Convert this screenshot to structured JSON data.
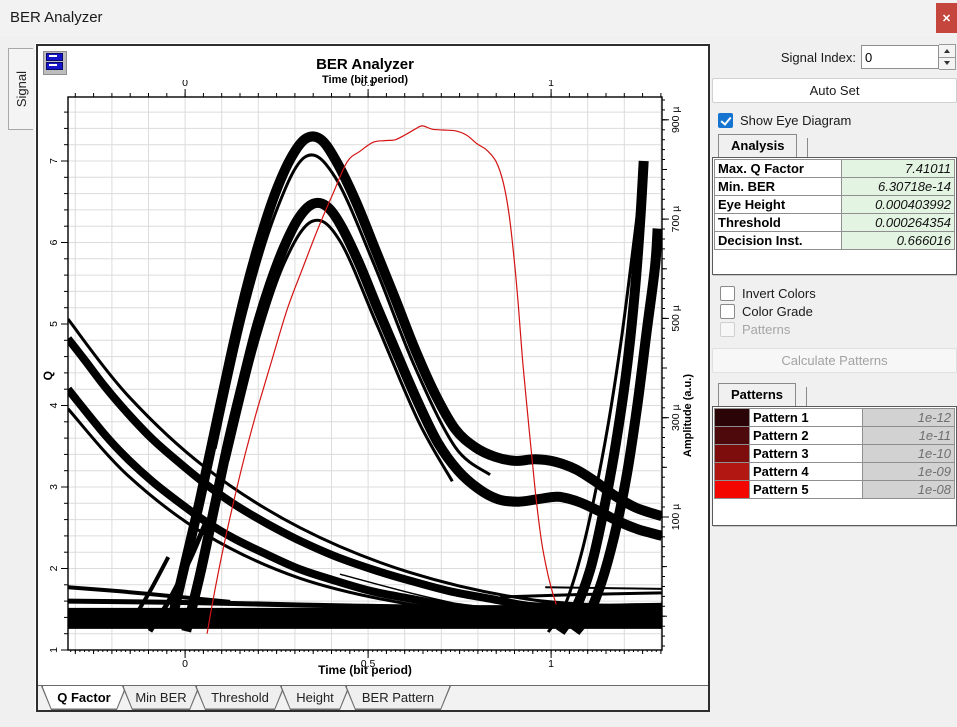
{
  "window": {
    "title": "BER Analyzer",
    "close_icon": "✕",
    "close_color": "#c4463d"
  },
  "left_tab": {
    "label": "Signal"
  },
  "chart": {
    "title": "BER Analyzer",
    "top_axis_title": "Time (bit period)",
    "bottom_axis_title": "Time (bit period)",
    "left_axis_title": "Q",
    "right_axis_title": "Amplitude (a.u.)"
  },
  "bottom_tabs": [
    {
      "label": "Q Factor",
      "active": true
    },
    {
      "label": "Min BER",
      "active": false
    },
    {
      "label": "Threshold",
      "active": false
    },
    {
      "label": "Height",
      "active": false
    },
    {
      "label": "BER Pattern",
      "active": false
    }
  ],
  "panel": {
    "signal_index_label": "Signal Index:",
    "signal_index_value": "0",
    "auto_set_label": "Auto Set",
    "show_eye_label": "Show Eye Diagram",
    "analysis_tab_label": "Analysis",
    "invert_colors_label": "Invert Colors",
    "color_grade_label": "Color Grade",
    "patterns_checkbox_label": "Patterns",
    "calculate_patterns_label": "Calculate Patterns",
    "patterns_tab_label": "Patterns",
    "analysis_value_bg": "#e4f4e2"
  },
  "analysis": {
    "rows": [
      {
        "label": "Max. Q Factor",
        "value": "7.41011"
      },
      {
        "label": "Min. BER",
        "value": "6.30718e-14"
      },
      {
        "label": "Eye Height",
        "value": "0.000403992"
      },
      {
        "label": "Threshold",
        "value": "0.000264354"
      },
      {
        "label": "Decision Inst.",
        "value": "0.666016"
      }
    ]
  },
  "patterns": {
    "rows": [
      {
        "label": "Pattern 1",
        "value": "1e-12",
        "color": "#2a0406"
      },
      {
        "label": "Pattern 2",
        "value": "1e-11",
        "color": "#4d090b"
      },
      {
        "label": "Pattern 3",
        "value": "1e-10",
        "color": "#7c0d0c"
      },
      {
        "label": "Pattern 4",
        "value": "1e-09",
        "color": "#b31712"
      },
      {
        "label": "Pattern 5",
        "value": "1e-08",
        "color": "#f40600"
      }
    ]
  },
  "chart_data": {
    "type": "line",
    "title": "BER Analyzer",
    "description": "Eye diagram (black bands, right amplitude axis) overlaid with Q-factor vs decision instant (red, left Q axis). Max Q 7.41011 at decision instant 0.666016.",
    "x_axis": {
      "label": "Time (bit period)",
      "min": -0.32,
      "max": 1.303,
      "minor_step": 0.05,
      "micro_step": 0.0125,
      "majors": [
        {
          "v": 0,
          "l": "0"
        },
        {
          "v": 0.5,
          "l": "0.5"
        },
        {
          "v": 1,
          "l": "1"
        }
      ]
    },
    "y_left": {
      "label": "Q",
      "min": 1.0,
      "max": 7.785,
      "minor_step": 0.2,
      "majors": [
        {
          "v": 1,
          "l": "1"
        },
        {
          "v": 2,
          "l": "2"
        },
        {
          "v": 3,
          "l": "3"
        },
        {
          "v": 4,
          "l": "4"
        },
        {
          "v": 5,
          "l": "5"
        },
        {
          "v": 6,
          "l": "6"
        },
        {
          "v": 7,
          "l": "7"
        }
      ]
    },
    "y_right": {
      "label": "Amplitude (a.u.)",
      "min": -168,
      "max": 946,
      "minor_step": 20,
      "medium_step": 100,
      "majors": [
        {
          "v": 100,
          "l": "100 µ"
        },
        {
          "v": 300,
          "l": "300 µ"
        },
        {
          "v": 500,
          "l": "500 µ"
        },
        {
          "v": 700,
          "l": "700 µ"
        },
        {
          "v": 900,
          "l": "900 µ"
        }
      ]
    },
    "grid": {
      "x_step": 0.1,
      "y_step": 0.2,
      "color": "#dcdcdc"
    },
    "q_factor_curve": {
      "name": "Q Factor",
      "color": "#d41414",
      "width": 1.2,
      "points": [
        [
          0.06,
          1.2
        ],
        [
          0.077,
          1.63
        ],
        [
          0.101,
          2.18
        ],
        [
          0.131,
          2.79
        ],
        [
          0.164,
          3.4
        ],
        [
          0.199,
          3.98
        ],
        [
          0.238,
          4.57
        ],
        [
          0.279,
          5.18
        ],
        [
          0.32,
          5.67
        ],
        [
          0.363,
          6.17
        ],
        [
          0.404,
          6.6
        ],
        [
          0.443,
          6.99
        ],
        [
          0.478,
          7.12
        ],
        [
          0.514,
          7.23
        ],
        [
          0.546,
          7.25
        ],
        [
          0.574,
          7.26
        ],
        [
          0.601,
          7.32
        ],
        [
          0.628,
          7.39
        ],
        [
          0.648,
          7.43
        ],
        [
          0.675,
          7.39
        ],
        [
          0.705,
          7.38
        ],
        [
          0.738,
          7.37
        ],
        [
          0.768,
          7.32
        ],
        [
          0.798,
          7.21
        ],
        [
          0.825,
          7.13
        ],
        [
          0.85,
          6.99
        ],
        [
          0.869,
          6.74
        ],
        [
          0.885,
          6.35
        ],
        [
          0.899,
          5.8
        ],
        [
          0.91,
          5.25
        ],
        [
          0.923,
          4.51
        ],
        [
          0.94,
          3.71
        ],
        [
          0.956,
          2.98
        ],
        [
          0.973,
          2.36
        ],
        [
          0.989,
          1.97
        ],
        [
          1.003,
          1.72
        ],
        [
          1.014,
          1.56
        ]
      ]
    },
    "eye_bands": [
      {
        "w": 10,
        "pts": [
          [
            -0.041,
            1.28
          ],
          [
            0.0,
            2.06
          ],
          [
            0.041,
            2.85
          ],
          [
            0.082,
            3.71
          ],
          [
            0.123,
            4.57
          ],
          [
            0.164,
            5.37
          ],
          [
            0.205,
            6.04
          ],
          [
            0.246,
            6.6
          ],
          [
            0.287,
            7.02
          ],
          [
            0.328,
            7.27
          ],
          [
            0.369,
            7.27
          ],
          [
            0.41,
            7.02
          ],
          [
            0.464,
            6.53
          ],
          [
            0.519,
            5.92
          ],
          [
            0.574,
            5.31
          ],
          [
            0.628,
            4.69
          ],
          [
            0.683,
            4.14
          ],
          [
            0.738,
            3.71
          ],
          [
            0.792,
            3.49
          ],
          [
            0.847,
            3.37
          ],
          [
            0.902,
            3.32
          ],
          [
            0.956,
            3.34
          ],
          [
            1.011,
            3.31
          ],
          [
            1.066,
            3.22
          ],
          [
            1.12,
            3.07
          ],
          [
            1.175,
            2.89
          ],
          [
            1.23,
            2.75
          ],
          [
            1.303,
            2.64
          ]
        ]
      },
      {
        "w": 3,
        "pts": [
          [
            0.082,
            3.47
          ],
          [
            0.164,
            5.12
          ],
          [
            0.246,
            6.35
          ],
          [
            0.328,
            7.05
          ],
          [
            0.41,
            6.8
          ],
          [
            0.519,
            5.7
          ],
          [
            0.628,
            4.47
          ],
          [
            0.738,
            3.49
          ],
          [
            0.833,
            3.15
          ]
        ]
      },
      {
        "w": 10,
        "pts": [
          [
            0.003,
            1.23
          ],
          [
            0.041,
            1.93
          ],
          [
            0.079,
            2.73
          ],
          [
            0.117,
            3.53
          ],
          [
            0.156,
            4.26
          ],
          [
            0.194,
            4.94
          ],
          [
            0.232,
            5.49
          ],
          [
            0.27,
            5.94
          ],
          [
            0.309,
            6.29
          ],
          [
            0.347,
            6.47
          ],
          [
            0.385,
            6.45
          ],
          [
            0.423,
            6.23
          ],
          [
            0.473,
            5.77
          ],
          [
            0.527,
            5.18
          ],
          [
            0.582,
            4.6
          ],
          [
            0.637,
            4.03
          ],
          [
            0.691,
            3.54
          ],
          [
            0.746,
            3.2
          ],
          [
            0.801,
            2.98
          ],
          [
            0.855,
            2.85
          ],
          [
            0.91,
            2.82
          ],
          [
            0.964,
            2.85
          ],
          [
            1.019,
            2.88
          ],
          [
            1.074,
            2.82
          ],
          [
            1.128,
            2.71
          ],
          [
            1.183,
            2.58
          ],
          [
            1.238,
            2.48
          ],
          [
            1.303,
            2.4
          ]
        ]
      },
      {
        "w": 3,
        "pts": [
          [
            0.117,
            3.32
          ],
          [
            0.194,
            4.72
          ],
          [
            0.27,
            5.74
          ],
          [
            0.347,
            6.26
          ],
          [
            0.423,
            6.02
          ],
          [
            0.527,
            4.96
          ],
          [
            0.637,
            3.81
          ],
          [
            0.73,
            3.07
          ]
        ]
      },
      {
        "w": 10,
        "pts": [
          [
            1.025,
            1.22
          ],
          [
            1.066,
            1.5
          ],
          [
            1.107,
            1.99
          ],
          [
            1.139,
            2.61
          ],
          [
            1.172,
            3.4
          ],
          [
            1.205,
            4.39
          ],
          [
            1.227,
            5.31
          ],
          [
            1.243,
            6.23
          ],
          [
            1.253,
            7.0
          ]
        ]
      },
      {
        "w": 3,
        "pts": [
          [
            0.992,
            1.22
          ],
          [
            1.036,
            1.53
          ],
          [
            1.079,
            2.12
          ],
          [
            1.117,
            2.85
          ],
          [
            1.156,
            3.77
          ],
          [
            1.194,
            4.88
          ],
          [
            1.227,
            6.04
          ],
          [
            1.249,
            6.84
          ]
        ]
      },
      {
        "w": 10,
        "pts": [
          [
            1.066,
            1.22
          ],
          [
            1.104,
            1.45
          ],
          [
            1.139,
            1.85
          ],
          [
            1.172,
            2.39
          ],
          [
            1.205,
            3.1
          ],
          [
            1.235,
            3.98
          ],
          [
            1.262,
            4.94
          ],
          [
            1.284,
            5.7
          ],
          [
            1.291,
            6.17
          ]
        ]
      },
      {
        "w": 8,
        "pts": [
          [
            -0.32,
            4.82
          ],
          [
            -0.273,
            4.55
          ],
          [
            -0.219,
            4.23
          ],
          [
            -0.156,
            3.9
          ],
          [
            -0.09,
            3.59
          ],
          [
            -0.019,
            3.31
          ],
          [
            0.055,
            3.04
          ],
          [
            0.137,
            2.78
          ],
          [
            0.224,
            2.55
          ],
          [
            0.314,
            2.34
          ],
          [
            0.41,
            2.15
          ],
          [
            0.511,
            1.99
          ],
          [
            0.615,
            1.85
          ],
          [
            0.724,
            1.72
          ],
          [
            0.833,
            1.63
          ],
          [
            0.943,
            1.54
          ],
          [
            1.052,
            1.53
          ],
          [
            1.167,
            1.48
          ],
          [
            1.303,
            1.45
          ]
        ]
      },
      {
        "w": 3,
        "pts": [
          [
            -0.32,
            5.06
          ],
          [
            -0.156,
            4.12
          ],
          [
            0.055,
            3.24
          ],
          [
            0.314,
            2.5
          ],
          [
            0.615,
            1.95
          ],
          [
            0.943,
            1.62
          ],
          [
            1.303,
            1.52
          ]
        ]
      },
      {
        "w": 8,
        "pts": [
          [
            -0.32,
            4.2
          ],
          [
            -0.219,
            3.64
          ],
          [
            -0.156,
            3.34
          ],
          [
            -0.09,
            3.07
          ],
          [
            -0.019,
            2.82
          ],
          [
            0.055,
            2.58
          ],
          [
            0.137,
            2.36
          ],
          [
            0.224,
            2.17
          ],
          [
            0.314,
            1.99
          ],
          [
            0.41,
            1.85
          ],
          [
            0.511,
            1.72
          ],
          [
            0.615,
            1.63
          ],
          [
            0.724,
            1.54
          ],
          [
            0.833,
            1.48
          ],
          [
            0.943,
            1.43
          ],
          [
            1.052,
            1.39
          ],
          [
            1.303,
            1.36
          ]
        ]
      },
      {
        "w": 3,
        "pts": [
          [
            -0.32,
            3.96
          ],
          [
            -0.156,
            3.14
          ],
          [
            0.055,
            2.42
          ],
          [
            0.314,
            1.88
          ],
          [
            0.615,
            1.56
          ],
          [
            0.943,
            1.4
          ],
          [
            1.303,
            1.34
          ]
        ]
      },
      {
        "w": 15,
        "pts": [
          [
            -0.32,
            1.38
          ],
          [
            0.5,
            1.38
          ],
          [
            1.303,
            1.38
          ]
        ]
      },
      {
        "w": 6,
        "pts": [
          [
            -0.32,
            1.48
          ],
          [
            0.5,
            1.48
          ],
          [
            1.303,
            1.48
          ]
        ]
      },
      {
        "w": 5,
        "pts": [
          [
            -0.32,
            1.29
          ],
          [
            0.5,
            1.29
          ],
          [
            1.303,
            1.29
          ]
        ]
      },
      {
        "w": 5,
        "pts": [
          [
            -0.32,
            1.6
          ],
          [
            0.04,
            1.58
          ],
          [
            0.45,
            1.54
          ],
          [
            0.86,
            1.52
          ],
          [
            1.303,
            1.55
          ]
        ]
      },
      {
        "w": 4,
        "pts": [
          [
            -0.32,
            1.77
          ],
          [
            -0.178,
            1.72
          ],
          [
            -0.014,
            1.65
          ],
          [
            0.123,
            1.59
          ]
        ]
      },
      {
        "w": 2,
        "pts": [
          [
            0.984,
            1.77
          ],
          [
            1.15,
            1.76
          ],
          [
            1.303,
            1.75
          ]
        ]
      },
      {
        "w": 3,
        "pts": [
          [
            0.861,
            1.65
          ],
          [
            1.07,
            1.68
          ],
          [
            1.303,
            1.7
          ]
        ]
      },
      {
        "w": 1.5,
        "pts": [
          [
            0.423,
            1.93
          ],
          [
            0.642,
            1.67
          ],
          [
            0.861,
            1.45
          ]
        ]
      },
      {
        "w": 5,
        "pts": [
          [
            -0.096,
            1.23
          ],
          [
            -0.041,
            1.63
          ],
          [
            0.014,
            2.12
          ],
          [
            0.055,
            2.55
          ]
        ]
      },
      {
        "w": 4,
        "pts": [
          [
            -0.15,
            1.32
          ],
          [
            -0.096,
            1.72
          ],
          [
            -0.046,
            2.14
          ]
        ]
      }
    ]
  }
}
